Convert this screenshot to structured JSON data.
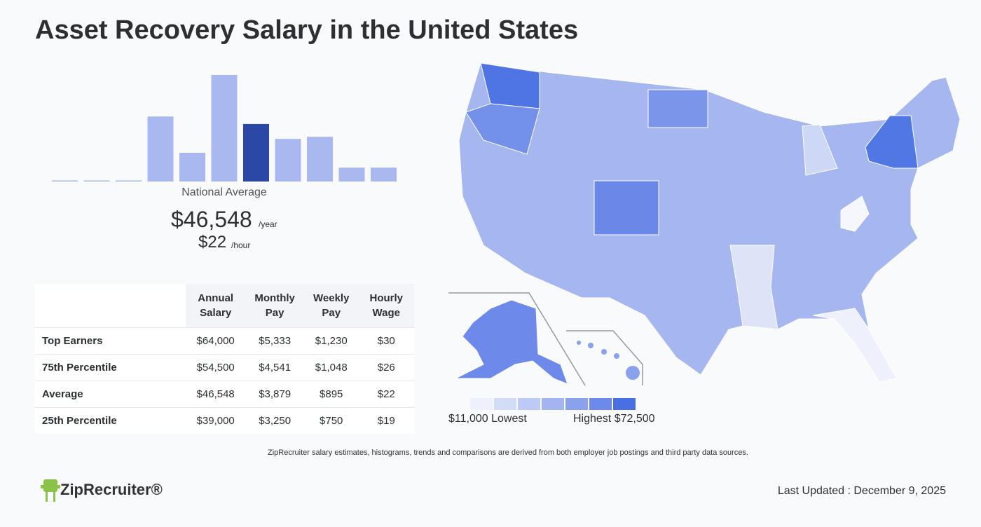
{
  "title": "Asset Recovery Salary in the United States",
  "chart_data": {
    "type": "bar",
    "values": [
      1,
      1,
      1,
      61,
      27,
      100,
      54,
      40,
      42,
      13,
      13
    ],
    "ylim": [
      0,
      100
    ],
    "color": "#a9b9f0",
    "highlight_color": "#2a49a6",
    "highlight_index": 6
  },
  "summary": {
    "label": "National Average",
    "annual": "$46,548",
    "annual_unit": "/year",
    "hourly": "$22",
    "hourly_unit": "/hour"
  },
  "table": {
    "header": [
      "Annual Salary",
      "Monthly Pay",
      "Weekly Pay",
      "Hourly Wage"
    ],
    "rows": [
      [
        "Top Earners",
        "$64,000",
        "$5,333",
        "$1,230",
        "$30"
      ],
      [
        "75th Percentile",
        "$54,500",
        "$4,541",
        "$1,048",
        "$26"
      ],
      [
        "Average",
        "$46,548",
        "$3,879",
        "$895",
        "$22"
      ],
      [
        "25th Percentile",
        "$39,000",
        "$3,250",
        "$750",
        "$19"
      ]
    ]
  },
  "map": {
    "legend_colors": [
      "#eef1fb",
      "#d3dcf7",
      "#bccaf5",
      "#a3b5f0",
      "#8aa1ec",
      "#6d89e9",
      "#4a6fe3"
    ],
    "low_label": "$11,000 Lowest",
    "high_label": "Highest $72,500"
  },
  "disclaimer": "ZipRecruiter salary estimates, histograms, trends and comparisons are derived from both employer job postings and third party data sources.",
  "logo": "ZipRecruiter®",
  "last_updated": "Last Updated : December 9, 2025"
}
